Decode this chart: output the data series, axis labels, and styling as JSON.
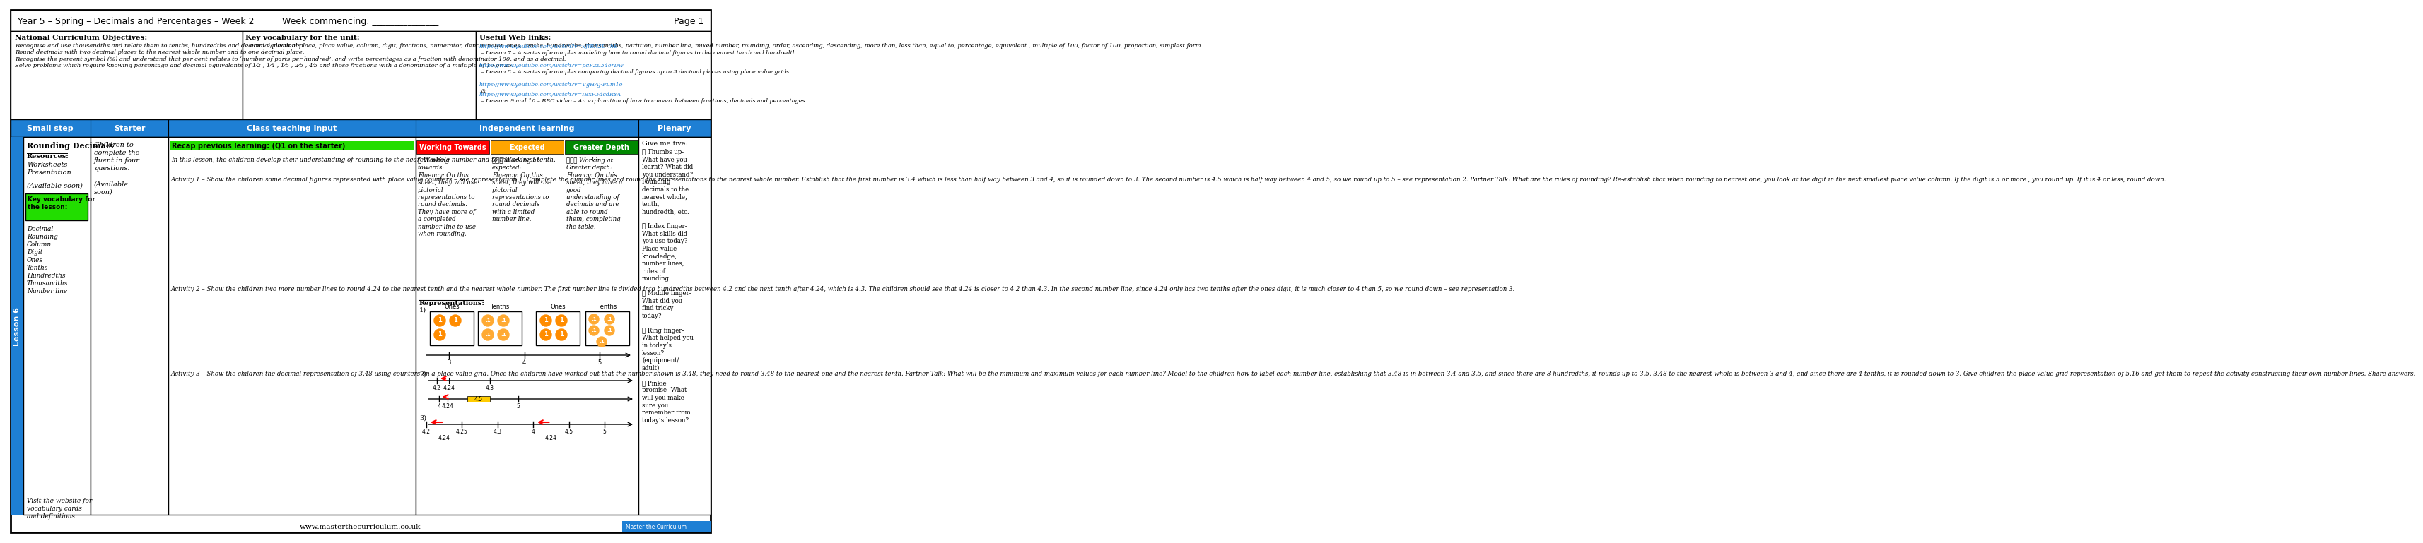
{
  "title_left": "Year 5 – Spring – Decimals and Percentages – Week 2",
  "title_center": "Week commencing: _______________",
  "title_right": "Page 1",
  "col_headers": [
    "Small step",
    "Starter",
    "Class teaching input",
    "Independent learning",
    "Plenary"
  ],
  "nc_title": "National Curriculum Objectives:",
  "nc_text": "Recognise and use thousandths and relate them to tenths, hundredths and decimal equivalents.\nRound decimals with two decimal places to the nearest whole number and to one decimal place.\nRecognise the percent symbol (%) and understand that per cent relates to ‘number of parts per hundred’, and write percentages as a fraction with denominator 100, and as a decimal.\nSolve problems which require knowing percentage and decimal equivalents of 1⁄2 , 1⁄4 , 1⁄5 , 2⁄5 , 4⁄5 and those fractions with a denominator of a multiple of 10 or 25.",
  "kv_title": "Key vocabulary for the unit:",
  "kv_text": "Decimal, decimal place, place value, column, digit, fractions, numerator, denominator, ones, tenths, hundredths, thousandths, partition, number line, mixed number, rounding, order, ascending, descending, more than, less than, equal to, percentage, equivalent , multiple of 100, factor of 100, proportion, simplest form.",
  "web_title": "Useful Web links:",
  "web_link1_url": "https://www.youtube.com/watch?v=xJIBA2L_ihE",
  "web_link1_desc": " – Lesson 7 – A series of examples modelling how to round decimal figures to the nearest tenth and hundredth.",
  "web_link2_url": "https://www.youtube.com/watch?v=p8FZu34erDw",
  "web_link2_desc": " – Lesson 8 – A series of examples comparing decimal figures up to 3 decimal places using place value grids.",
  "web_link3_url": "https://www.youtube.com/watch?v=VgHAj-PLm1o",
  "web_link3_desc": " &",
  "web_link4_url": "https://www.youtube.com/watch?v=IExP3dcdRYA",
  "web_link4_desc": " – Lessons 9 and 10 – BBC video – An explanation of how to convert between fractions, decimals and percentages.",
  "small_step": "Rounding Decimals",
  "resources_title": "Resources:",
  "resources": "Worksheets\nPresentation",
  "available": "(Available soon)",
  "key_vocab_lesson": "Key vocabulary for\nthe lesson:",
  "lesson_vocab": "Decimal\nRounding\nColumn\nDigit\nOnes\nTenths\nHundredths\nThousandths\nNumber line",
  "visit_text": "Visit the website for\nvocabulary cards\nand definitions.",
  "starter_text": "Children to\ncomplete the\nfluent in four\nquestions.\n\n(Available\nsoon)",
  "teaching_green": "Recap previous learning: (Q1 on the starter)",
  "teaching_text1": "In this lesson, the children develop their understanding of rounding to the nearest whole number and to the nearest tenth.",
  "teaching_activity1": "Activity 1 – Show the children some decimal figures represented with place value counters – see representation 1. Complete the number lines and round the representations to the nearest whole number. Establish that the first number is 3.4 which is less than half way between 3 and 4, so it is rounded down to 3. The second number is 4.5 which is half way between 4 and 5, so we round up to 5 – see representation 2. Partner Talk: What are the rules of rounding? Re-establish that when rounding to nearest one, you look at the digit in the next smallest place value column. If the digit is 5 or more , you round up. If it is 4 or less, round down.",
  "teaching_activity2": "Activity 2 – Show the children two more number lines to round 4.24 to the nearest tenth and the nearest whole number. The first number line is divided into hundredths between 4.2 and the next tenth after 4.24, which is 4.3. The children should see that 4.24 is closer to 4.2 than 4.3. In the second number line, since 4.24 only has two tenths after the ones digit, it is much closer to 4 than 5, so we round down – see representation 3.",
  "teaching_activity3": "Activity 3 – Show the children the decimal representation of 3.48 using counters on a place value grid. Once the children have worked out that the number shown is 3.48, they need to round 3.48 to the nearest one and the nearest tenth. Partner Talk: What will be the minimum and maximum values for each number line? Model to the children how to label each number line, establishing that 3.48 is in between 3.4 and 3.5, and since there are 8 hundredths, it rounds up to 3.5. 3.48 to the nearest whole is between 3 and 4, and since there are 4 tenths, it is rounded down to 3. Give children the place value grid representation of 5.16 and get them to repeat the activity constructing their own number lines. Share answers.",
  "working_towards_title": "Working Towards",
  "working_towards_color": "#ff0000",
  "expected_title": "Expected",
  "expected_color": "#ffa500",
  "greater_depth_title": "Greater Depth",
  "greater_depth_color": "#008800",
  "working_towards_text": "★ Working\ntowards:\nFluency: On this\nsheet, they will use\npictorial\nrepresentations to\nround decimals.\nThey have more of\na completed\nnumber line to use\nwhen rounding.",
  "expected_text": "★★★ Working at\nexpected:\nFluency: On this\nsheet, they will use\npictorial\nrepresentations to\nround decimals\nwith a limited\nnumber line.",
  "greater_depth_text": "★★★ Working at\nGreater depth:\nFluency: On this\nsheet, they have a\ngood\nunderstanding of\ndecimals and are\nable to round\nthem, completing\nthe table.",
  "representations_title": "Representations:",
  "plenary_title": "Give me five:",
  "plenary_text": "👍 Thumbs up-\nWhat have you\nlearnt? What did\nyou understand?\nRounding\ndecimals to the\nnearest whole,\ntenth,\nhundredth, etc.\n\n👆 Index finger-\nWhat skills did\nyou use today?\nPlace value\nknowledge,\nnumber lines,\nrules of\nrounding.\n\n💕 Middle finger-\nWhat did you\nfind tricky\ntoday?\n\n💍 Ring finger-\nWhat helped you\nin today’s\nlesson?\n(equipment/\nadult)\n\n💎 Pinkie\npromise- What\nwill you make\nsure you\nremember from\ntoday’s lesson?",
  "lesson_number": "6",
  "footer": "www.masterthecurriculum.co.uk",
  "blue_color": "#1e7fd4",
  "green_highlight": "#22dd00",
  "orange_circle": "#ff8800",
  "yellow_circle": "#ffaa44"
}
